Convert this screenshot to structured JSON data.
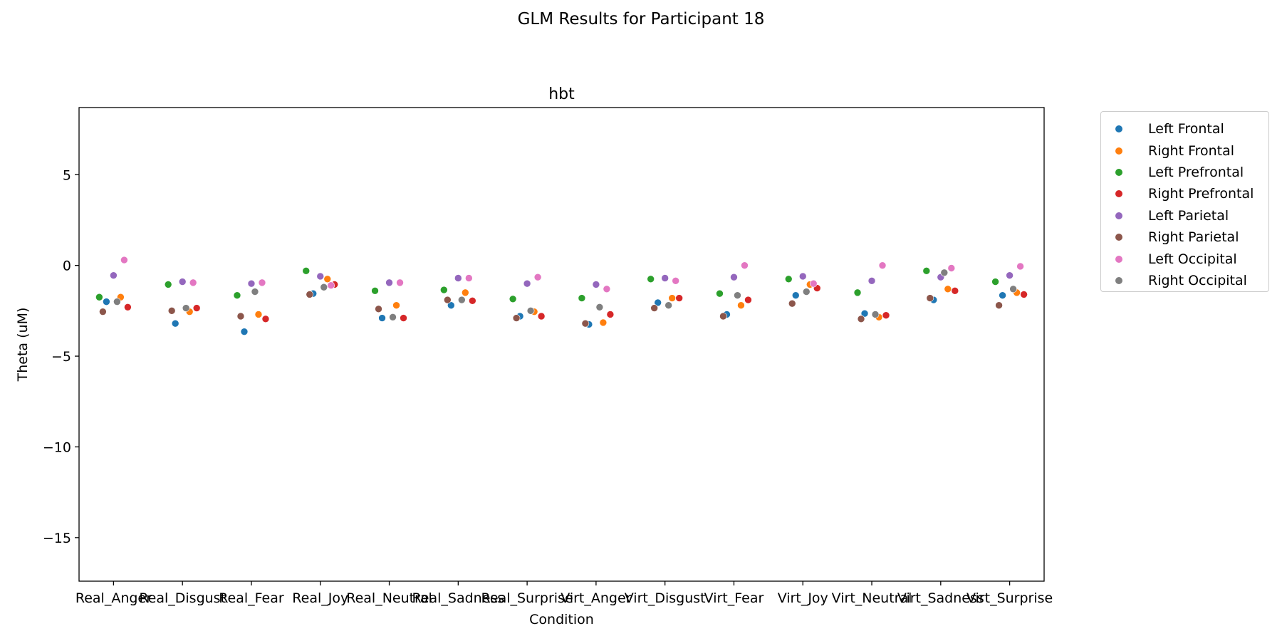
{
  "figure": {
    "suptitle": "GLM Results for Participant 18"
  },
  "chart_data": {
    "type": "scatter",
    "title": "hbt",
    "xlabel": "Condition",
    "ylabel": "Theta (uM)",
    "ylim": [
      -17.4,
      8.7
    ],
    "yticks": [
      5,
      0,
      -5,
      -10,
      -15
    ],
    "ytick_labels": [
      "5",
      "0",
      "−5",
      "−10",
      "−15"
    ],
    "grid": false,
    "legend_placement": "outside-upper-right",
    "categories": [
      "Real_Anger",
      "Real_Disgust",
      "Real_Fear",
      "Real_Joy",
      "Real_Neutral",
      "Real_Sadness",
      "Real_Surprise",
      "Virt_Anger",
      "Virt_Disgust",
      "Virt_Fear",
      "Virt_Joy",
      "Virt_Neutral",
      "Virt_Sadness",
      "Virt_Surprise"
    ],
    "series": [
      {
        "name": "Left Frontal",
        "color": "#1f77b4",
        "values": [
          -2.0,
          -3.2,
          -3.65,
          -1.55,
          -2.9,
          -2.2,
          -2.8,
          -3.25,
          -2.05,
          -2.7,
          -1.65,
          -2.65,
          -1.9,
          -1.65
        ]
      },
      {
        "name": "Right Frontal",
        "color": "#ff7f0e",
        "values": [
          -1.75,
          -2.55,
          -2.7,
          -0.75,
          -2.2,
          -1.5,
          -2.55,
          -3.15,
          -1.8,
          -2.2,
          -1.05,
          -2.85,
          -1.3,
          -1.5
        ]
      },
      {
        "name": "Left Prefrontal",
        "color": "#2ca02c",
        "values": [
          -1.75,
          -1.05,
          -1.65,
          -0.3,
          -1.4,
          -1.35,
          -1.85,
          -1.8,
          -0.75,
          -1.55,
          -0.75,
          -1.5,
          -0.3,
          -0.9
        ]
      },
      {
        "name": "Right Prefrontal",
        "color": "#d62728",
        "values": [
          -2.3,
          -2.35,
          -2.95,
          -1.05,
          -2.9,
          -1.95,
          -2.8,
          -2.7,
          -1.8,
          -1.9,
          -1.25,
          -2.75,
          -1.4,
          -1.6
        ]
      },
      {
        "name": "Left Parietal",
        "color": "#9467bd",
        "values": [
          -0.55,
          -0.9,
          -1.0,
          -0.6,
          -0.95,
          -0.7,
          -1.0,
          -1.05,
          -0.7,
          -0.65,
          -0.6,
          -0.85,
          -0.65,
          -0.55
        ]
      },
      {
        "name": "Right Parietal",
        "color": "#8c564b",
        "values": [
          -2.55,
          -2.5,
          -2.8,
          -1.6,
          -2.4,
          -1.9,
          -2.9,
          -3.2,
          -2.35,
          -2.8,
          -2.1,
          -2.95,
          -1.8,
          -2.2
        ]
      },
      {
        "name": "Left Occipital",
        "color": "#e377c2",
        "values": [
          0.3,
          -0.95,
          -0.95,
          -1.1,
          -0.95,
          -0.7,
          -0.65,
          -1.3,
          -0.85,
          0.0,
          -1.0,
          0.0,
          -0.15,
          -0.05
        ]
      },
      {
        "name": "Right Occipital",
        "color": "#7f7f7f",
        "values": [
          -2.0,
          -2.35,
          -1.45,
          -1.2,
          -2.85,
          -1.9,
          -2.5,
          -2.3,
          -2.2,
          -1.65,
          -1.45,
          -2.7,
          -0.4,
          -1.3
        ]
      }
    ]
  }
}
